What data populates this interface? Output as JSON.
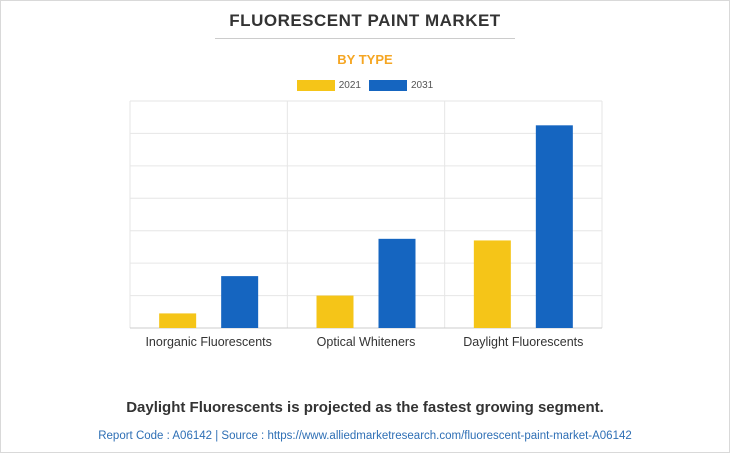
{
  "chart_data": {
    "type": "bar",
    "title": "FLUORESCENT PAINT MARKET",
    "subtitle": "BY TYPE",
    "categories": [
      "Inorganic Fluorescents",
      "Optical Whiteners",
      "Daylight Fluorescents"
    ],
    "series": [
      {
        "name": "2021",
        "color": "#f5c518",
        "values": [
          4.5,
          10,
          27
        ]
      },
      {
        "name": "2031",
        "color": "#1565c0",
        "values": [
          16,
          27.5,
          62.5
        ]
      }
    ],
    "ylim": [
      0,
      70
    ],
    "xlabel": "",
    "ylabel": "",
    "grid": true,
    "legend": "top-center"
  },
  "headline": "Daylight Fluorescents is projected as the fastest growing segment.",
  "footer": "Report Code : A06142  |  Source : https://www.alliedmarketresearch.com/fluorescent-paint-market-A06142"
}
